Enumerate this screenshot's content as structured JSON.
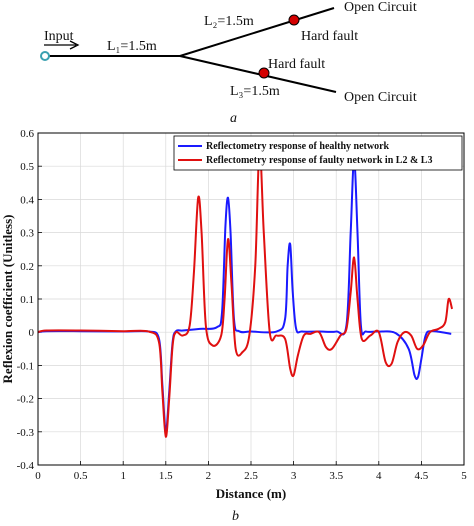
{
  "diagram": {
    "input_label": "Input",
    "l1_label": "L₁=1.5m",
    "l2_label": "L₂=1.5m",
    "l3_label": "L₃=1.5m",
    "fault_label_upper": "Hard fault",
    "fault_label_lower": "Hard fault",
    "open_circuit_upper": "Open Circuit",
    "open_circuit_lower": "Open Circuit",
    "panel_label": "a",
    "colors": {
      "line": "#000000",
      "fault": "#d40000",
      "input_node": "#3aa0b0"
    }
  },
  "panel_b_label": "b",
  "chart_data": {
    "type": "line",
    "xlabel": "Distance (m)",
    "ylabel": "Reflexion coefficient (Unitless)",
    "xlim": [
      0,
      5
    ],
    "ylim": [
      -0.4,
      0.6
    ],
    "xticks": [
      "0",
      "0.5",
      "1",
      "1.5",
      "2",
      "2.5",
      "3",
      "3.5",
      "4",
      "4.5",
      "5"
    ],
    "yticks": [
      "-0.4",
      "-0.3",
      "-0.2",
      "-0.1",
      "0",
      "0.1",
      "0.2",
      "0.3",
      "0.4",
      "0.5",
      "0.6"
    ],
    "grid": true,
    "legend_position": "top-right",
    "series": [
      {
        "name": "Reflectometry response of healthy network",
        "color": "#1a1aff",
        "x": [
          0,
          0.1,
          0.5,
          1.0,
          1.3,
          1.42,
          1.46,
          1.5,
          1.54,
          1.58,
          1.62,
          1.7,
          1.9,
          2.1,
          2.16,
          2.2,
          2.23,
          2.26,
          2.3,
          2.36,
          2.5,
          2.8,
          2.9,
          2.93,
          2.96,
          2.99,
          3.03,
          3.1,
          3.3,
          3.5,
          3.62,
          3.67,
          3.71,
          3.75,
          3.79,
          3.85,
          4.0,
          4.2,
          4.35,
          4.42,
          4.46,
          4.5,
          4.55,
          4.62,
          4.85
        ],
        "y": [
          0.0,
          0.003,
          0.003,
          0.002,
          0.002,
          -0.02,
          -0.16,
          -0.3,
          -0.18,
          -0.03,
          0.003,
          0.005,
          0.01,
          0.015,
          0.06,
          0.32,
          0.405,
          0.3,
          0.04,
          0.003,
          0.002,
          0.002,
          0.04,
          0.2,
          0.265,
          0.12,
          0.01,
          0.002,
          0.002,
          0.002,
          0.02,
          0.3,
          0.52,
          0.3,
          0.02,
          0.002,
          0.002,
          -0.003,
          -0.05,
          -0.13,
          -0.135,
          -0.08,
          -0.01,
          0.003,
          -0.005
        ]
      },
      {
        "name": "Reflectometry response of faulty network in L2 & L3",
        "color": "#e01010",
        "x": [
          0,
          0.1,
          0.5,
          1.0,
          1.3,
          1.42,
          1.46,
          1.5,
          1.54,
          1.58,
          1.62,
          1.7,
          1.78,
          1.83,
          1.88,
          1.92,
          1.97,
          2.05,
          2.15,
          2.19,
          2.23,
          2.27,
          2.32,
          2.4,
          2.48,
          2.55,
          2.6,
          2.65,
          2.72,
          2.8,
          2.9,
          2.96,
          3.0,
          3.05,
          3.12,
          3.2,
          3.3,
          3.38,
          3.45,
          3.55,
          3.62,
          3.67,
          3.71,
          3.75,
          3.8,
          3.9,
          4.0,
          4.08,
          4.15,
          4.22,
          4.3,
          4.38,
          4.45,
          4.52,
          4.6,
          4.7,
          4.78,
          4.82,
          4.86
        ],
        "y": [
          0.0,
          0.005,
          0.005,
          0.003,
          0.002,
          -0.03,
          -0.18,
          -0.315,
          -0.2,
          -0.04,
          0.0,
          -0.01,
          0.02,
          0.18,
          0.405,
          0.3,
          0.02,
          -0.04,
          -0.01,
          0.1,
          0.28,
          0.15,
          -0.05,
          -0.06,
          -0.01,
          0.2,
          0.555,
          0.3,
          0.0,
          -0.01,
          -0.02,
          -0.11,
          -0.13,
          -0.07,
          -0.01,
          -0.005,
          0.0,
          -0.045,
          -0.05,
          -0.01,
          0.01,
          0.12,
          0.225,
          0.1,
          -0.02,
          -0.01,
          0.0,
          -0.09,
          -0.095,
          -0.03,
          0.0,
          -0.01,
          -0.05,
          -0.04,
          0.0,
          0.01,
          0.03,
          0.1,
          0.07
        ]
      }
    ]
  }
}
